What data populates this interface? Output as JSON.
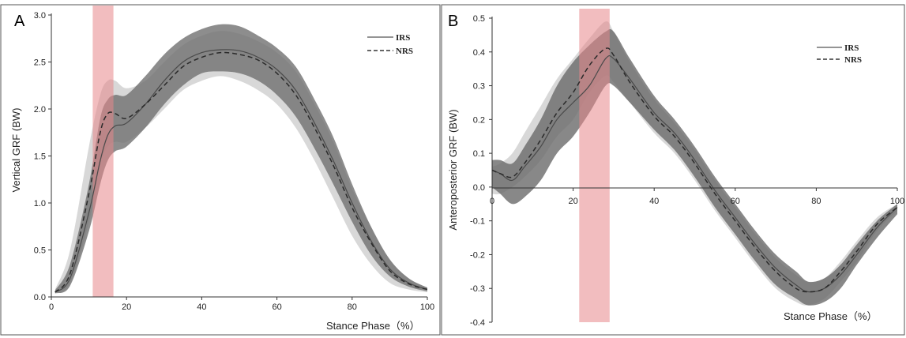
{
  "chart_data": [
    {
      "type": "line",
      "panel_label": "A",
      "xlabel": "Stance Phase（%）",
      "ylabel": "Vertical GRF (BW)",
      "xlim": [
        0,
        100
      ],
      "ylim": [
        0,
        3.0
      ],
      "x_ticks": [
        0,
        20,
        40,
        60,
        80,
        100
      ],
      "y_ticks": [
        0.0,
        0.5,
        1.0,
        1.5,
        2.0,
        2.5,
        3.0
      ],
      "x_tick_labels": [
        "0",
        "20",
        "40",
        "60",
        "80",
        "100"
      ],
      "y_tick_labels": [
        "0.0",
        "0.5",
        "1.0",
        "1.5",
        "2.0",
        "2.5",
        "3.0"
      ],
      "legend_position": "top-right",
      "highlight_region": [
        11,
        16.5
      ],
      "x": [
        1,
        5,
        10,
        13,
        15,
        17,
        20,
        25,
        30,
        35,
        40,
        45,
        50,
        55,
        60,
        65,
        70,
        75,
        80,
        85,
        90,
        95,
        100
      ],
      "series": [
        {
          "name": "IRS",
          "style": "solid",
          "values": [
            0.05,
            0.2,
            0.9,
            1.45,
            1.72,
            1.82,
            1.85,
            2.05,
            2.3,
            2.5,
            2.6,
            2.63,
            2.62,
            2.55,
            2.42,
            2.2,
            1.85,
            1.45,
            1.0,
            0.6,
            0.3,
            0.15,
            0.08
          ],
          "band_lower": [
            0.04,
            0.12,
            0.7,
            1.2,
            1.45,
            1.55,
            1.6,
            1.8,
            2.05,
            2.25,
            2.38,
            2.4,
            2.38,
            2.3,
            2.15,
            1.92,
            1.58,
            1.2,
            0.8,
            0.45,
            0.22,
            0.11,
            0.06
          ],
          "band_upper": [
            0.07,
            0.35,
            1.2,
            1.9,
            2.1,
            2.15,
            2.15,
            2.35,
            2.58,
            2.75,
            2.85,
            2.9,
            2.88,
            2.78,
            2.65,
            2.45,
            2.1,
            1.7,
            1.2,
            0.75,
            0.4,
            0.2,
            0.1
          ]
        },
        {
          "name": "NRS",
          "style": "dashed",
          "values": [
            0.05,
            0.25,
            1.1,
            1.75,
            1.95,
            1.95,
            1.9,
            2.05,
            2.25,
            2.45,
            2.55,
            2.6,
            2.58,
            2.52,
            2.38,
            2.15,
            1.8,
            1.4,
            0.95,
            0.58,
            0.28,
            0.14,
            0.08
          ],
          "band_lower": [
            0.03,
            0.15,
            0.8,
            1.4,
            1.6,
            1.65,
            1.65,
            1.8,
            2.0,
            2.2,
            2.3,
            2.35,
            2.3,
            2.2,
            2.05,
            1.8,
            1.45,
            1.05,
            0.65,
            0.35,
            0.15,
            0.08,
            0.05
          ],
          "band_upper": [
            0.08,
            0.5,
            1.6,
            2.15,
            2.3,
            2.3,
            2.22,
            2.3,
            2.5,
            2.68,
            2.78,
            2.83,
            2.8,
            2.72,
            2.6,
            2.4,
            2.05,
            1.65,
            1.15,
            0.75,
            0.4,
            0.2,
            0.1
          ]
        }
      ]
    },
    {
      "type": "line",
      "panel_label": "B",
      "xlabel": "Stance Phase（%）",
      "ylabel": "Anteroposterior GRF (BW)",
      "xlim": [
        0,
        100
      ],
      "ylim": [
        -0.4,
        0.5
      ],
      "x_ticks": [
        0,
        20,
        40,
        60,
        80,
        100
      ],
      "y_ticks": [
        -0.4,
        -0.3,
        -0.2,
        -0.1,
        0.0,
        0.1,
        0.2,
        0.3,
        0.4,
        0.5
      ],
      "x_tick_labels": [
        "0",
        "20",
        "40",
        "60",
        "80",
        "100"
      ],
      "y_tick_labels": [
        "-0.4",
        "-0.3",
        "-0.2",
        "-0.1",
        "0.0",
        "0.1",
        "0.2",
        "0.3",
        "0.4",
        "0.5"
      ],
      "legend_position": "top-right",
      "highlight_region": [
        21.5,
        29
      ],
      "x": [
        0,
        2,
        5,
        8,
        12,
        16,
        20,
        24,
        28,
        30,
        34,
        40,
        45,
        50,
        55,
        60,
        65,
        70,
        75,
        78,
        82,
        86,
        90,
        95,
        100
      ],
      "series": [
        {
          "name": "IRS",
          "style": "solid",
          "values": [
            0.05,
            0.04,
            0.02,
            0.06,
            0.12,
            0.2,
            0.25,
            0.3,
            0.38,
            0.38,
            0.32,
            0.22,
            0.16,
            0.08,
            -0.01,
            -0.09,
            -0.17,
            -0.24,
            -0.29,
            -0.31,
            -0.3,
            -0.26,
            -0.2,
            -0.12,
            -0.06
          ],
          "band_lower": [
            0.0,
            -0.02,
            -0.05,
            -0.03,
            0.02,
            0.1,
            0.15,
            0.22,
            0.3,
            0.3,
            0.25,
            0.17,
            0.11,
            0.03,
            -0.06,
            -0.14,
            -0.22,
            -0.29,
            -0.33,
            -0.35,
            -0.34,
            -0.3,
            -0.23,
            -0.15,
            -0.08
          ],
          "band_upper": [
            0.08,
            0.08,
            0.07,
            0.12,
            0.2,
            0.3,
            0.37,
            0.42,
            0.46,
            0.46,
            0.38,
            0.27,
            0.2,
            0.12,
            0.03,
            -0.05,
            -0.13,
            -0.2,
            -0.25,
            -0.28,
            -0.27,
            -0.23,
            -0.17,
            -0.1,
            -0.05
          ]
        },
        {
          "name": "NRS",
          "style": "dashed",
          "values": [
            0.05,
            0.04,
            0.03,
            0.07,
            0.14,
            0.22,
            0.28,
            0.36,
            0.41,
            0.39,
            0.31,
            0.21,
            0.15,
            0.07,
            -0.02,
            -0.1,
            -0.18,
            -0.25,
            -0.3,
            -0.31,
            -0.3,
            -0.25,
            -0.19,
            -0.11,
            -0.06
          ],
          "band_lower": [
            -0.02,
            -0.02,
            0.0,
            0.03,
            0.08,
            0.15,
            0.2,
            0.28,
            0.33,
            0.31,
            0.25,
            0.16,
            0.1,
            0.02,
            -0.07,
            -0.15,
            -0.23,
            -0.3,
            -0.34,
            -0.35,
            -0.33,
            -0.28,
            -0.22,
            -0.13,
            -0.07
          ],
          "band_upper": [
            0.06,
            0.07,
            0.1,
            0.16,
            0.24,
            0.32,
            0.38,
            0.44,
            0.49,
            0.46,
            0.37,
            0.26,
            0.19,
            0.11,
            0.02,
            -0.06,
            -0.14,
            -0.21,
            -0.26,
            -0.28,
            -0.27,
            -0.22,
            -0.16,
            -0.09,
            -0.05
          ]
        }
      ]
    }
  ]
}
